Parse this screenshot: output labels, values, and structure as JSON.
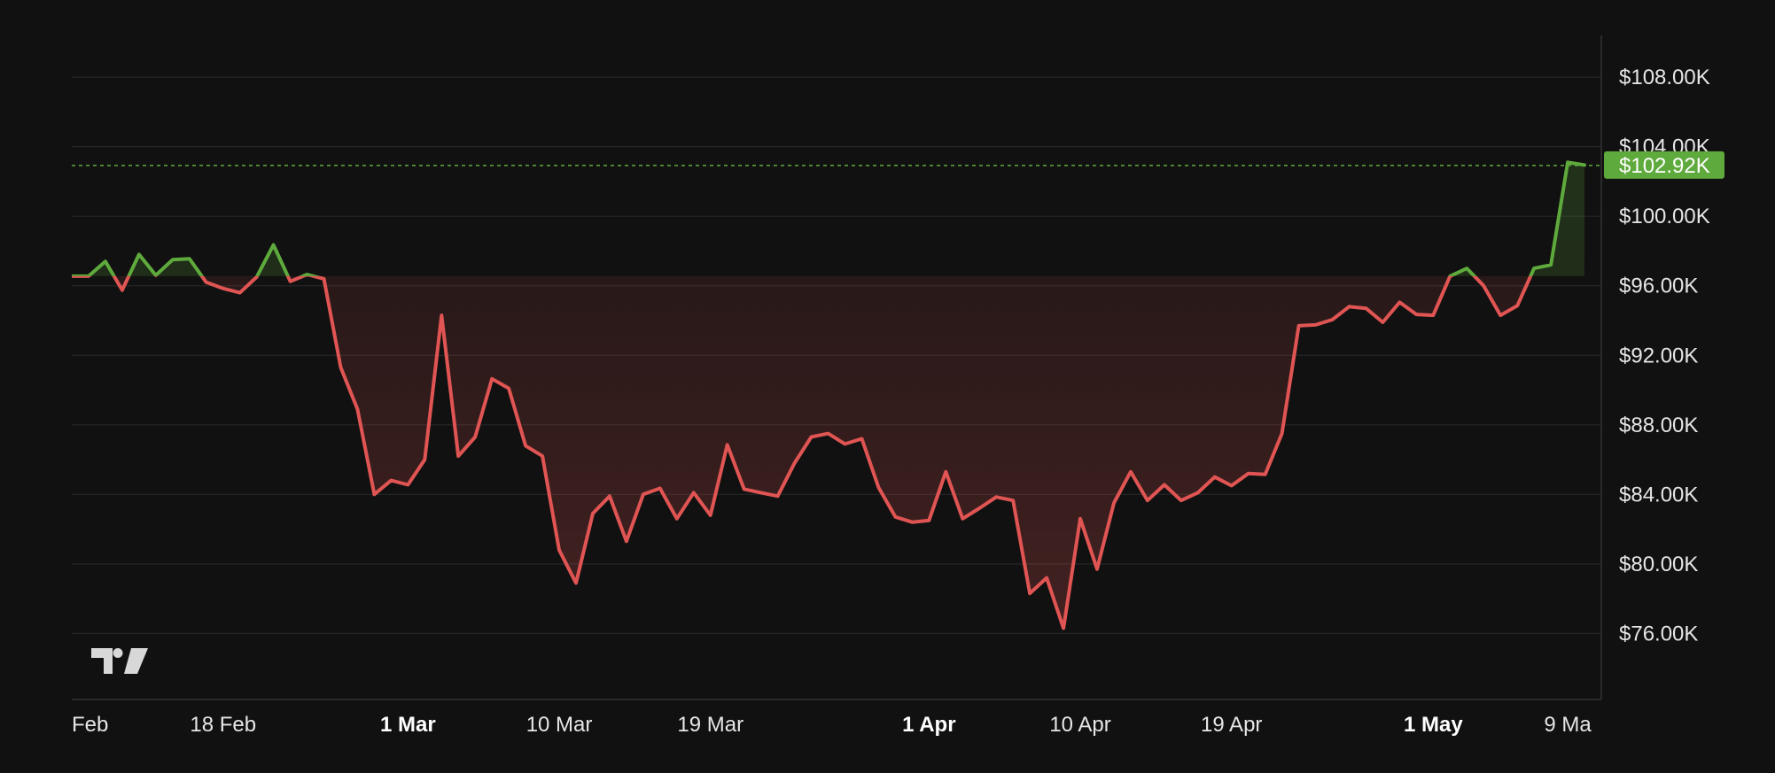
{
  "chart_data": {
    "type": "line",
    "xlabel": "",
    "ylabel": "",
    "x_ticks": [
      {
        "label": "Feb",
        "date": "2025-02-09",
        "bold": false
      },
      {
        "label": "18 Feb",
        "date": "2025-02-18",
        "bold": false
      },
      {
        "label": "1 Mar",
        "date": "2025-03-01",
        "bold": true
      },
      {
        "label": "10 Mar",
        "date": "2025-03-10",
        "bold": false
      },
      {
        "label": "19 Mar",
        "date": "2025-03-19",
        "bold": false
      },
      {
        "label": "1 Apr",
        "date": "2025-04-01",
        "bold": true
      },
      {
        "label": "10 Apr",
        "date": "2025-04-10",
        "bold": false
      },
      {
        "label": "19 Apr",
        "date": "2025-04-19",
        "bold": false
      },
      {
        "label": "1 May",
        "date": "2025-05-01",
        "bold": true
      },
      {
        "label": "9 Ma",
        "date": "2025-05-09",
        "bold": false
      }
    ],
    "y_ticks": [
      {
        "label": "$76.00K",
        "value": 76000
      },
      {
        "label": "$80.00K",
        "value": 80000
      },
      {
        "label": "$84.00K",
        "value": 84000
      },
      {
        "label": "$88.00K",
        "value": 88000
      },
      {
        "label": "$92.00K",
        "value": 92000
      },
      {
        "label": "$96.00K",
        "value": 96000
      },
      {
        "label": "$100.00K",
        "value": 100000
      },
      {
        "label": "$104.00K",
        "value": 104000
      },
      {
        "label": "$108.00K",
        "value": 108000
      }
    ],
    "ylim": [
      72200,
      110400
    ],
    "xlim": [
      "2025-02-09",
      "2025-05-11"
    ],
    "baseline": 96550,
    "last_price": {
      "value": 102920,
      "label": "$102.92K"
    },
    "grid": true,
    "colors": {
      "background": "#111111",
      "above": "#5faa3c",
      "below": "#e05553",
      "last_badge": "#5faa3c",
      "grid": "#262626"
    },
    "series": [
      {
        "x": [
          "2025-02-09",
          "2025-02-10",
          "2025-02-11",
          "2025-02-12",
          "2025-02-13",
          "2025-02-14",
          "2025-02-15",
          "2025-02-16",
          "2025-02-17",
          "2025-02-18",
          "2025-02-19",
          "2025-02-20",
          "2025-02-21",
          "2025-02-22",
          "2025-02-23",
          "2025-02-24",
          "2025-02-25",
          "2025-02-26",
          "2025-02-27",
          "2025-02-28",
          "2025-03-01",
          "2025-03-02",
          "2025-03-03",
          "2025-03-04",
          "2025-03-05",
          "2025-03-06",
          "2025-03-07",
          "2025-03-08",
          "2025-03-09",
          "2025-03-10",
          "2025-03-11",
          "2025-03-12",
          "2025-03-13",
          "2025-03-14",
          "2025-03-15",
          "2025-03-16",
          "2025-03-17",
          "2025-03-18",
          "2025-03-19",
          "2025-03-20",
          "2025-03-21",
          "2025-03-22",
          "2025-03-23",
          "2025-03-24",
          "2025-03-25",
          "2025-03-26",
          "2025-03-27",
          "2025-03-28",
          "2025-03-29",
          "2025-03-30",
          "2025-03-31",
          "2025-04-01",
          "2025-04-02",
          "2025-04-03",
          "2025-04-04",
          "2025-04-05",
          "2025-04-06",
          "2025-04-07",
          "2025-04-08",
          "2025-04-09",
          "2025-04-10",
          "2025-04-11",
          "2025-04-12",
          "2025-04-13",
          "2025-04-14",
          "2025-04-15",
          "2025-04-16",
          "2025-04-17",
          "2025-04-18",
          "2025-04-19",
          "2025-04-20",
          "2025-04-21",
          "2025-04-22",
          "2025-04-23",
          "2025-04-24",
          "2025-04-25",
          "2025-04-26",
          "2025-04-27",
          "2025-04-28",
          "2025-04-29",
          "2025-04-30",
          "2025-05-01",
          "2025-05-02",
          "2025-05-03",
          "2025-05-04",
          "2025-05-05",
          "2025-05-06",
          "2025-05-07",
          "2025-05-08",
          "2025-05-09",
          "2025-05-10"
        ],
        "values": [
          96550,
          96550,
          97400,
          95750,
          97800,
          96600,
          97500,
          97550,
          96200,
          95850,
          95600,
          96500,
          98350,
          96250,
          96650,
          96400,
          91300,
          88900,
          84000,
          84800,
          84550,
          86000,
          94300,
          86200,
          87300,
          90650,
          90100,
          86800,
          86200,
          80800,
          78900,
          82900,
          83900,
          81300,
          84000,
          84350,
          82600,
          84100,
          82800,
          86850,
          84300,
          84100,
          83900,
          85800,
          87300,
          87500,
          86900,
          87200,
          84400,
          82700,
          82400,
          82500,
          85300,
          82600,
          83200,
          83850,
          83650,
          78300,
          79200,
          76300,
          82600,
          79700,
          83500,
          85300,
          83650,
          84550,
          83650,
          84100,
          85000,
          84500,
          85200,
          85150,
          87500,
          93700,
          93750,
          94050,
          94800,
          94700,
          93900,
          95050,
          94350,
          94300,
          96550,
          97000,
          96000,
          94300,
          94850,
          97000,
          97200,
          103100,
          102950
        ]
      }
    ]
  }
}
